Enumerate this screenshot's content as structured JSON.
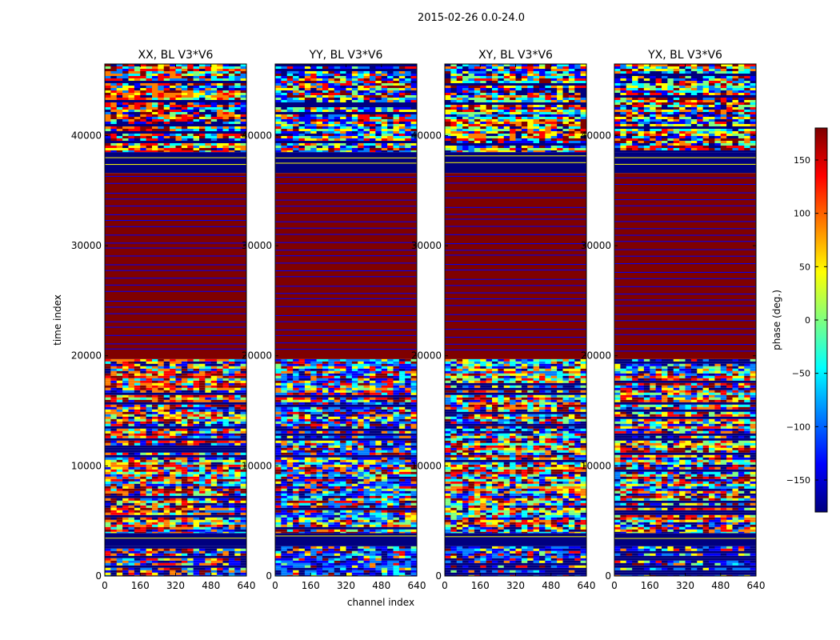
{
  "figure": {
    "suptitle": "2015-02-26 0.0-24.0",
    "xlabel": "channel index",
    "ylabel": "time index"
  },
  "colorbar": {
    "label": "phase (deg.)",
    "range": [
      -180,
      180
    ],
    "ticks": [
      150,
      100,
      50,
      0,
      -50,
      -100,
      -150
    ],
    "tick_labels": [
      "150",
      "100",
      "50",
      "0",
      "−50",
      "−100",
      "−150"
    ],
    "colormap": "jet",
    "colors": [
      "#00007f",
      "#0000ff",
      "#007fff",
      "#00ffff",
      "#7fff7f",
      "#ffff00",
      "#ff7f00",
      "#ff0000",
      "#7f0000"
    ]
  },
  "chart_data": [
    {
      "type": "heatmap",
      "title": "XX, BL V3*V6",
      "xlabel": "channel index",
      "ylabel": "time index",
      "xlim": [
        0,
        640
      ],
      "ylim": [
        0,
        46500
      ],
      "xticks": [
        0,
        160,
        320,
        480,
        640
      ],
      "xtick_labels": [
        "0",
        "160",
        "320",
        "480",
        "640"
      ],
      "yticks": [
        0,
        10000,
        20000,
        30000,
        40000
      ],
      "ytick_labels": [
        "0",
        "10000",
        "20000",
        "30000",
        "40000"
      ],
      "value_label": "phase (deg.)",
      "bands": [
        {
          "t0": 0,
          "t1": 2700,
          "kind": "mixed"
        },
        {
          "t0": 2700,
          "t1": 3900,
          "kind": "low"
        },
        {
          "t0": 3900,
          "t1": 19700,
          "kind": "noise"
        },
        {
          "t0": 19700,
          "t1": 36600,
          "kind": "high"
        },
        {
          "t0": 36600,
          "t1": 38500,
          "kind": "low"
        },
        {
          "t0": 38500,
          "t1": 46500,
          "kind": "noise"
        }
      ]
    },
    {
      "type": "heatmap",
      "title": "YY, BL V3*V6",
      "xlabel": "channel index",
      "ylabel": "",
      "xlim": [
        0,
        640
      ],
      "ylim": [
        0,
        46500
      ],
      "xticks": [
        0,
        160,
        320,
        480,
        640
      ],
      "xtick_labels": [
        "0",
        "160",
        "320",
        "480",
        "640"
      ],
      "yticks": [
        0,
        10000,
        20000,
        30000,
        40000
      ],
      "ytick_labels": [
        "0",
        "10000",
        "20000",
        "30000",
        "40000"
      ],
      "value_label": "phase (deg.)",
      "bands": [
        {
          "t0": 0,
          "t1": 2700,
          "kind": "mixed"
        },
        {
          "t0": 2700,
          "t1": 3900,
          "kind": "low"
        },
        {
          "t0": 3900,
          "t1": 19700,
          "kind": "noise"
        },
        {
          "t0": 19700,
          "t1": 36600,
          "kind": "high"
        },
        {
          "t0": 36600,
          "t1": 38500,
          "kind": "low"
        },
        {
          "t0": 38500,
          "t1": 46500,
          "kind": "noise"
        }
      ]
    },
    {
      "type": "heatmap",
      "title": "XY, BL V3*V6",
      "xlabel": "channel index",
      "ylabel": "",
      "xlim": [
        0,
        640
      ],
      "ylim": [
        0,
        46500
      ],
      "xticks": [
        0,
        160,
        320,
        480,
        640
      ],
      "xtick_labels": [
        "0",
        "160",
        "320",
        "480",
        "640"
      ],
      "yticks": [
        0,
        10000,
        20000,
        30000,
        40000
      ],
      "ytick_labels": [
        "0",
        "10000",
        "20000",
        "30000",
        "40000"
      ],
      "value_label": "phase (deg.)",
      "bands": [
        {
          "t0": 0,
          "t1": 2700,
          "kind": "mixed"
        },
        {
          "t0": 2700,
          "t1": 3900,
          "kind": "low"
        },
        {
          "t0": 3900,
          "t1": 19700,
          "kind": "noise"
        },
        {
          "t0": 19700,
          "t1": 36600,
          "kind": "high"
        },
        {
          "t0": 36600,
          "t1": 38500,
          "kind": "low"
        },
        {
          "t0": 38500,
          "t1": 46500,
          "kind": "noise"
        }
      ]
    },
    {
      "type": "heatmap",
      "title": "YX, BL V3*V6",
      "xlabel": "channel index",
      "ylabel": "",
      "xlim": [
        0,
        640
      ],
      "ylim": [
        0,
        46500
      ],
      "xticks": [
        0,
        160,
        320,
        480,
        640
      ],
      "xtick_labels": [
        "0",
        "160",
        "320",
        "480",
        "640"
      ],
      "yticks": [
        0,
        10000,
        20000,
        30000,
        40000
      ],
      "ytick_labels": [
        "0",
        "10000",
        "20000",
        "30000",
        "40000"
      ],
      "value_label": "phase (deg.)",
      "bands": [
        {
          "t0": 0,
          "t1": 2700,
          "kind": "mixed"
        },
        {
          "t0": 2700,
          "t1": 3900,
          "kind": "low"
        },
        {
          "t0": 3900,
          "t1": 19700,
          "kind": "noise"
        },
        {
          "t0": 19700,
          "t1": 36600,
          "kind": "high"
        },
        {
          "t0": 36600,
          "t1": 38500,
          "kind": "low"
        },
        {
          "t0": 38500,
          "t1": 46500,
          "kind": "noise"
        }
      ]
    }
  ]
}
